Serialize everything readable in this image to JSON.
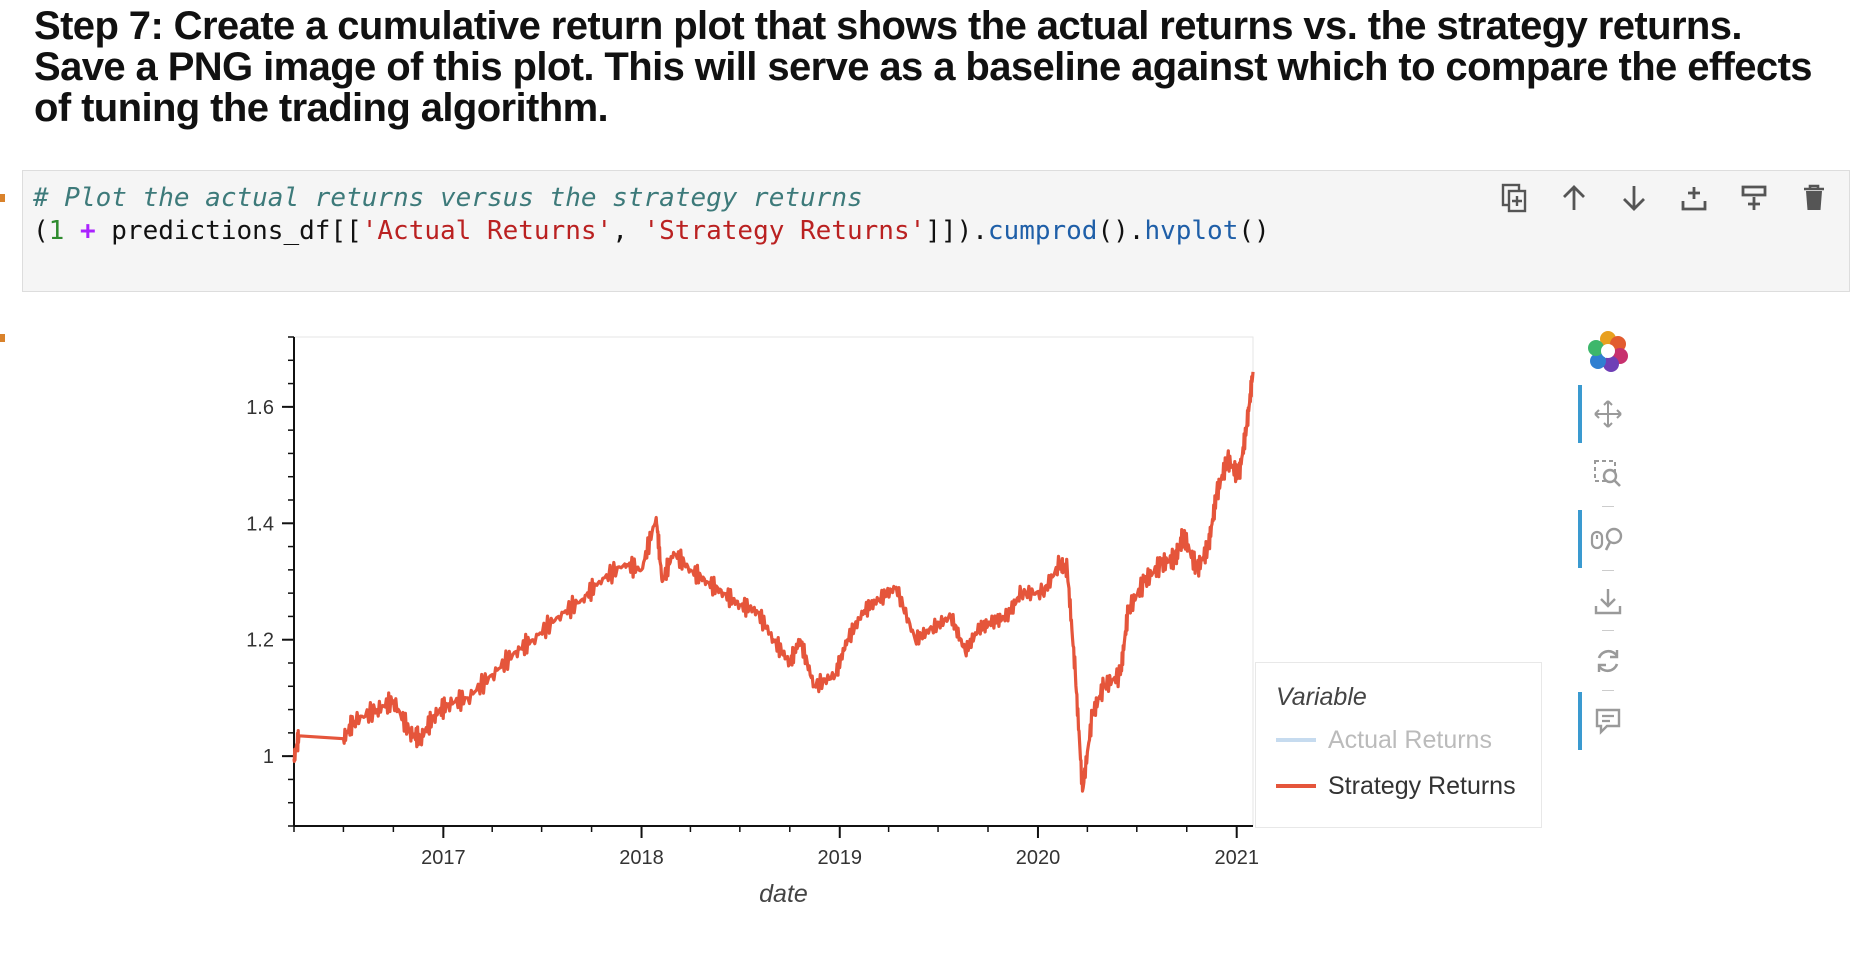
{
  "heading": "Step 7: Create a cumulative return plot that shows the actual returns vs. the strategy returns. Save a PNG image of this plot. This will serve as a baseline against which to compare the effects of tuning the trading algorithm.",
  "code": {
    "comment": "# Plot the actual returns versus the strategy returns",
    "line2": {
      "open": "(",
      "one": "1",
      "plus": "+",
      "obj": " predictions_df[[",
      "str1": "'Actual Returns'",
      "comma": ", ",
      "str2": "'Strategy Returns'",
      "close": "]]).",
      "fn1": "cumprod",
      "parens1": "().",
      "fn2": "hvplot",
      "parens2": "()"
    }
  },
  "cell_toolbar": [
    "duplicate-icon",
    "move-up-icon",
    "move-down-icon",
    "insert-above-icon",
    "insert-below-icon",
    "delete-icon"
  ],
  "bokeh_tools": [
    "pan-icon",
    "box-zoom-icon",
    "wheel-zoom-icon",
    "save-icon",
    "reset-icon",
    "hover-icon"
  ],
  "chart_data": {
    "type": "line",
    "xlabel": "date",
    "ylabel": "",
    "x_ticks": [
      "2017",
      "2018",
      "2019",
      "2020",
      "2021"
    ],
    "y_ticks": [
      "1",
      "1.2",
      "1.4",
      "1.6"
    ],
    "xlim": [
      "2016-04",
      "2021-01-31"
    ],
    "ylim": [
      0.88,
      1.72
    ],
    "legend": {
      "title": "Variable",
      "placement": "right"
    },
    "series": [
      {
        "name": "Actual Returns",
        "color": "#c6dbef",
        "muted": true,
        "x": [],
        "values": []
      },
      {
        "name": "Strategy Returns",
        "color": "#e5553b",
        "x": [
          "2016-04-01",
          "2016-04-10",
          "2016-07-01",
          "2016-07-20",
          "2016-09-01",
          "2016-10-01",
          "2016-11-01",
          "2016-11-20",
          "2016-12-15",
          "2017-01-10",
          "2017-02-15",
          "2017-04-01",
          "2017-05-15",
          "2017-06-15",
          "2017-08-01",
          "2017-09-15",
          "2017-10-15",
          "2017-12-01",
          "2018-01-01",
          "2018-01-28",
          "2018-02-08",
          "2018-03-01",
          "2018-04-01",
          "2018-05-01",
          "2018-06-01",
          "2018-07-01",
          "2018-08-01",
          "2018-09-01",
          "2018-10-01",
          "2018-10-20",
          "2018-11-15",
          "2018-12-24",
          "2019-01-15",
          "2019-02-15",
          "2019-03-15",
          "2019-04-15",
          "2019-05-20",
          "2019-06-20",
          "2019-07-25",
          "2019-08-20",
          "2019-09-15",
          "2019-10-10",
          "2019-11-05",
          "2019-12-01",
          "2020-01-10",
          "2020-02-10",
          "2020-02-24",
          "2020-03-10",
          "2020-03-23",
          "2020-04-10",
          "2020-05-01",
          "2020-06-01",
          "2020-06-15",
          "2020-07-15",
          "2020-08-15",
          "2020-09-10",
          "2020-09-25",
          "2020-10-20",
          "2020-11-10",
          "2020-11-25",
          "2020-12-15",
          "2021-01-05",
          "2021-01-20",
          "2021-01-31"
        ],
        "values": [
          0.995,
          1.035,
          1.03,
          1.06,
          1.08,
          1.095,
          1.04,
          1.03,
          1.07,
          1.09,
          1.1,
          1.14,
          1.18,
          1.2,
          1.24,
          1.27,
          1.3,
          1.33,
          1.32,
          1.41,
          1.3,
          1.35,
          1.32,
          1.3,
          1.28,
          1.26,
          1.25,
          1.2,
          1.16,
          1.2,
          1.12,
          1.14,
          1.2,
          1.25,
          1.27,
          1.29,
          1.2,
          1.22,
          1.24,
          1.18,
          1.22,
          1.23,
          1.24,
          1.28,
          1.28,
          1.33,
          1.32,
          1.14,
          0.94,
          1.07,
          1.12,
          1.14,
          1.25,
          1.3,
          1.33,
          1.34,
          1.38,
          1.32,
          1.36,
          1.45,
          1.51,
          1.48,
          1.57,
          1.66
        ]
      }
    ]
  }
}
